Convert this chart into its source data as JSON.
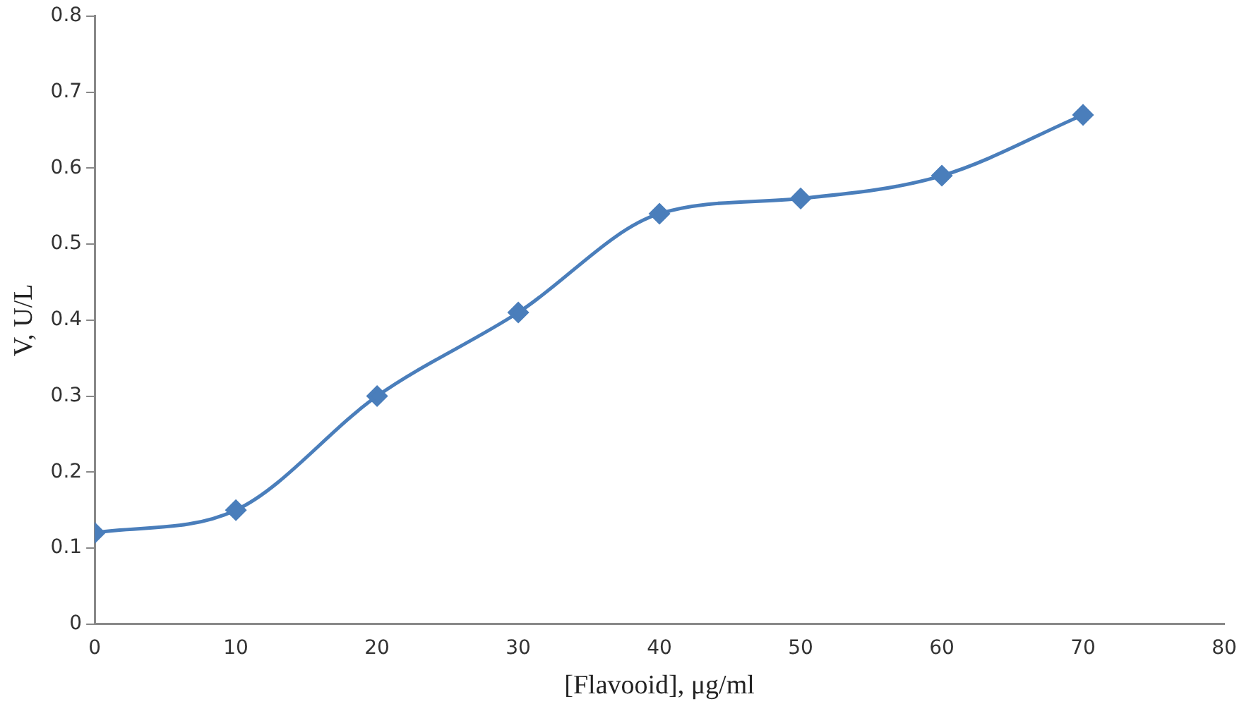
{
  "chart_data": {
    "type": "line",
    "xlabel": "[Flavooid], μg/ml",
    "ylabel": "V, U/L",
    "x": [
      0,
      10,
      20,
      30,
      40,
      50,
      60,
      70
    ],
    "series": [
      {
        "color": "#4a7ebb",
        "values": [
          0.12,
          0.15,
          0.3,
          0.41,
          0.54,
          0.56,
          0.59,
          0.67
        ]
      }
    ],
    "xlim": [
      0,
      80
    ],
    "xticks": [
      0,
      10,
      20,
      30,
      40,
      50,
      60,
      70,
      80
    ],
    "ylim": [
      0,
      0.8
    ],
    "yticks": [
      0,
      0.1,
      0.2,
      0.3,
      0.4,
      0.5,
      0.6,
      0.7,
      0.8
    ],
    "grid": false,
    "legend": false,
    "marker": "diamond",
    "line_style": "solid"
  }
}
